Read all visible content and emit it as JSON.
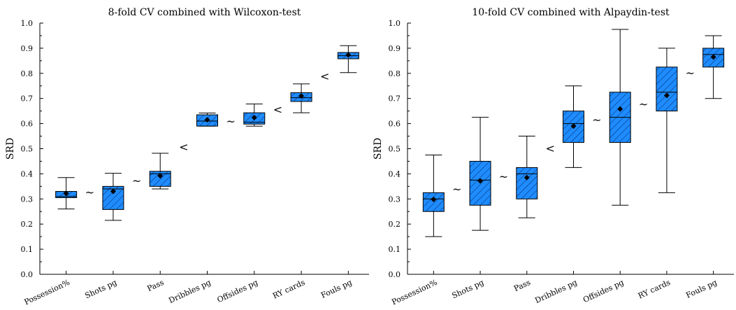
{
  "chart_data": [
    {
      "type": "box",
      "title": "8-fold CV combined with Wilcoxon-test",
      "ylabel": "SRD",
      "xlabel": "",
      "ylim": [
        0.0,
        1.0
      ],
      "yticks": [
        "0.0",
        "0.1",
        "0.2",
        "0.3",
        "0.4",
        "0.5",
        "0.6",
        "0.7",
        "0.8",
        "0.9",
        "1.0"
      ],
      "categories": [
        "Possession%",
        "Shots pg",
        "Pass",
        "Dribbles pg",
        "Offsides pg",
        "RY cards",
        "Fouls pg"
      ],
      "boxes": [
        {
          "min": 0.26,
          "q1": 0.305,
          "median": 0.31,
          "q3": 0.33,
          "max": 0.385,
          "mean": 0.322
        },
        {
          "min": 0.215,
          "q1": 0.258,
          "median": 0.34,
          "q3": 0.35,
          "max": 0.402,
          "mean": 0.33
        },
        {
          "min": 0.34,
          "q1": 0.35,
          "median": 0.4,
          "q3": 0.41,
          "max": 0.482,
          "mean": 0.392
        },
        {
          "min": 0.59,
          "q1": 0.59,
          "median": 0.61,
          "q3": 0.635,
          "max": 0.642,
          "mean": 0.615
        },
        {
          "min": 0.59,
          "q1": 0.598,
          "median": 0.605,
          "q3": 0.643,
          "max": 0.678,
          "mean": 0.624
        },
        {
          "min": 0.643,
          "q1": 0.688,
          "median": 0.703,
          "q3": 0.723,
          "max": 0.758,
          "mean": 0.71
        },
        {
          "min": 0.803,
          "q1": 0.858,
          "median": 0.87,
          "q3": 0.883,
          "max": 0.91,
          "mean": 0.873
        }
      ],
      "relations": [
        "~",
        "~",
        "<",
        "~",
        "<",
        "<"
      ],
      "box_color": "#1e8cff"
    },
    {
      "type": "box",
      "title": "10-fold CV combined with Alpaydin-test",
      "ylabel": "SRD",
      "xlabel": "",
      "ylim": [
        0.0,
        1.0
      ],
      "yticks": [
        "0.0",
        "0.1",
        "0.2",
        "0.3",
        "0.4",
        "0.5",
        "0.6",
        "0.7",
        "0.8",
        "0.9",
        "1.0"
      ],
      "categories": [
        "Possession%",
        "Shots pg",
        "Pass",
        "Dribbles pg",
        "Offsides pg",
        "RY cards",
        "Fouls pg"
      ],
      "boxes": [
        {
          "min": 0.15,
          "q1": 0.25,
          "median": 0.3,
          "q3": 0.325,
          "max": 0.475,
          "mean": 0.298
        },
        {
          "min": 0.175,
          "q1": 0.275,
          "median": 0.375,
          "q3": 0.45,
          "max": 0.625,
          "mean": 0.372
        },
        {
          "min": 0.225,
          "q1": 0.3,
          "median": 0.4,
          "q3": 0.425,
          "max": 0.55,
          "mean": 0.385
        },
        {
          "min": 0.425,
          "q1": 0.525,
          "median": 0.6,
          "q3": 0.65,
          "max": 0.75,
          "mean": 0.59
        },
        {
          "min": 0.275,
          "q1": 0.525,
          "median": 0.625,
          "q3": 0.725,
          "max": 0.975,
          "mean": 0.658
        },
        {
          "min": 0.325,
          "q1": 0.65,
          "median": 0.725,
          "q3": 0.825,
          "max": 0.9,
          "mean": 0.712
        },
        {
          "min": 0.7,
          "q1": 0.825,
          "median": 0.875,
          "q3": 0.9,
          "max": 0.95,
          "mean": 0.865
        }
      ],
      "relations": [
        "~",
        "~",
        "<",
        "~",
        "~",
        "~"
      ],
      "box_color": "#1e8cff"
    }
  ]
}
